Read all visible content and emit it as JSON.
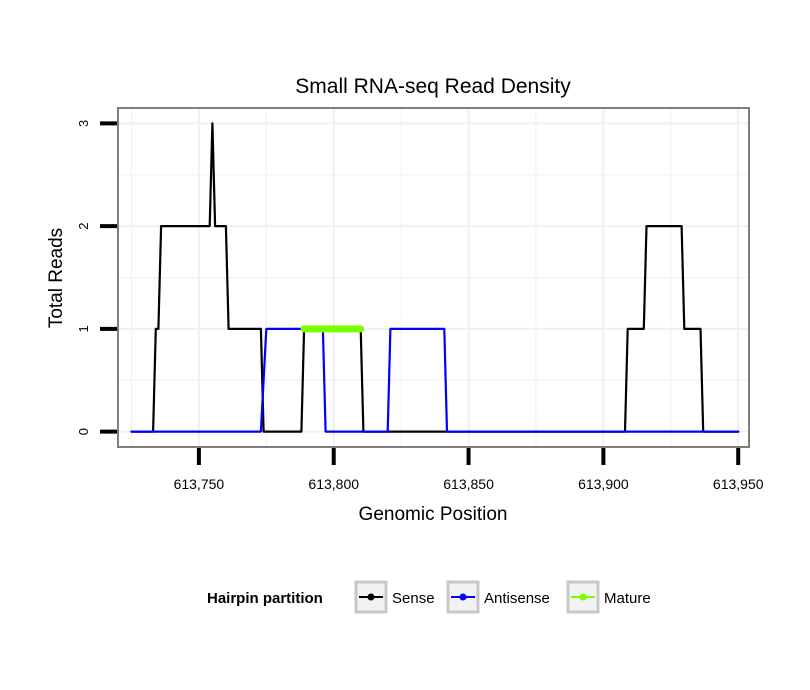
{
  "chart_data": {
    "type": "line",
    "title": "Small RNA-seq Read Density",
    "xlabel": "Genomic Position",
    "ylabel": "Total Reads",
    "xlim": [
      613720,
      613954
    ],
    "ylim": [
      -0.15,
      3.15
    ],
    "x_ticks": [
      613750,
      613800,
      613850,
      613900,
      613950
    ],
    "x_tick_labels": [
      "613,750",
      "613,800",
      "613,850",
      "613,900",
      "613,950"
    ],
    "y_ticks": [
      0,
      1,
      2,
      3
    ],
    "y_tick_labels": [
      "0",
      "1",
      "2",
      "3"
    ],
    "grid": true,
    "legend": {
      "title": "Hairpin partition",
      "position": "bottom",
      "entries": [
        "Sense",
        "Antisense",
        "Mature"
      ]
    },
    "series": [
      {
        "name": "Sense",
        "color": "#000000",
        "x": [
          613725,
          613733,
          613734,
          613735,
          613736,
          613754,
          613755,
          613756,
          613757,
          613760,
          613761,
          613773,
          613774,
          613788,
          613789,
          613810,
          613811,
          613908,
          613909,
          613915,
          613916,
          613925,
          613926,
          613929,
          613930,
          613933,
          613934,
          613936,
          613937,
          613950
        ],
        "values": [
          0,
          0,
          1,
          1,
          2,
          2,
          3,
          2,
          2,
          2,
          1,
          1,
          0,
          0,
          1,
          1,
          0,
          0,
          1,
          1,
          2,
          2,
          2,
          2,
          1,
          1,
          1,
          1,
          0,
          0
        ]
      },
      {
        "name": "Antisense",
        "color": "#0000ff",
        "x": [
          613725,
          613773,
          613775,
          613796,
          613797,
          613810,
          613820,
          613821,
          613841,
          613842,
          613950
        ],
        "values": [
          0,
          0,
          1,
          1,
          0,
          0,
          0,
          1,
          1,
          0,
          0
        ]
      },
      {
        "name": "Mature",
        "color": "#7cfc00",
        "x": [
          613789,
          613810
        ],
        "values": [
          1,
          1
        ]
      }
    ]
  }
}
